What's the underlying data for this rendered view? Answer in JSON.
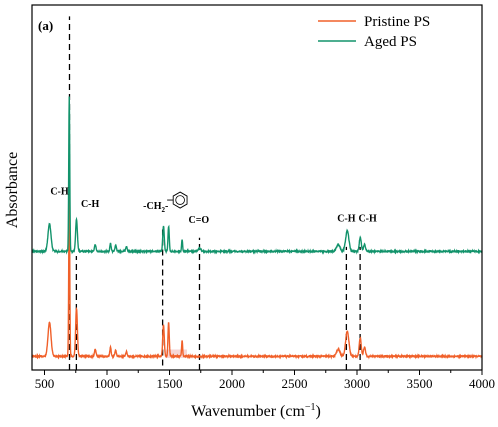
{
  "chart_data": {
    "type": "line",
    "panel_label": "(a)",
    "xlabel": "Wavenumber (cm",
    "xlabel_sup": "−1",
    "xlabel_close": ")",
    "ylabel": "Absorbance",
    "xlim": [
      400,
      4000
    ],
    "x_ticks": [
      500,
      1000,
      1500,
      2000,
      2500,
      3000,
      3500,
      4000
    ],
    "y_tick_labels_shown": false,
    "legend_position": "top-right",
    "colors": {
      "pristine": "#f0602a",
      "aged": "#12936b",
      "highlight": "#f6d6d6",
      "axis": "#000000"
    },
    "series": [
      {
        "name": "Pristine PS",
        "color": "#f0602a",
        "baseline": 0.06,
        "noise": 0.006,
        "peaks": [
          {
            "x": 540,
            "height": 0.15,
            "width": 12
          },
          {
            "x": 698,
            "height": 0.72,
            "width": 4
          },
          {
            "x": 756,
            "height": 0.21,
            "width": 7
          },
          {
            "x": 906,
            "height": 0.03,
            "width": 6
          },
          {
            "x": 1028,
            "height": 0.04,
            "width": 5
          },
          {
            "x": 1069,
            "height": 0.025,
            "width": 6
          },
          {
            "x": 1155,
            "height": 0.02,
            "width": 6
          },
          {
            "x": 1452,
            "height": 0.14,
            "width": 6
          },
          {
            "x": 1493,
            "height": 0.15,
            "width": 5
          },
          {
            "x": 1601,
            "height": 0.07,
            "width": 4
          },
          {
            "x": 2850,
            "height": 0.03,
            "width": 14
          },
          {
            "x": 2922,
            "height": 0.11,
            "width": 13
          },
          {
            "x": 3026,
            "height": 0.08,
            "width": 8
          },
          {
            "x": 3060,
            "height": 0.04,
            "width": 8
          }
        ]
      },
      {
        "name": "Aged PS",
        "color": "#12936b",
        "baseline": 0.52,
        "noise": 0.006,
        "peaks": [
          {
            "x": 540,
            "height": 0.12,
            "width": 12
          },
          {
            "x": 698,
            "height": 0.68,
            "width": 4
          },
          {
            "x": 756,
            "height": 0.14,
            "width": 7
          },
          {
            "x": 906,
            "height": 0.03,
            "width": 6
          },
          {
            "x": 1028,
            "height": 0.035,
            "width": 5
          },
          {
            "x": 1069,
            "height": 0.025,
            "width": 6
          },
          {
            "x": 1155,
            "height": 0.02,
            "width": 6
          },
          {
            "x": 1452,
            "height": 0.11,
            "width": 6
          },
          {
            "x": 1493,
            "height": 0.11,
            "width": 5
          },
          {
            "x": 1601,
            "height": 0.05,
            "width": 4
          },
          {
            "x": 1740,
            "height": 0.012,
            "width": 12
          },
          {
            "x": 2850,
            "height": 0.03,
            "width": 14
          },
          {
            "x": 2922,
            "height": 0.09,
            "width": 13
          },
          {
            "x": 3026,
            "height": 0.06,
            "width": 8
          },
          {
            "x": 3060,
            "height": 0.03,
            "width": 8
          }
        ]
      }
    ],
    "highlight_band": {
      "x_from": 1470,
      "x_to": 1640
    },
    "reference_lines": [
      {
        "x": 700,
        "y_from": 0.0,
        "y_to": 1.55
      },
      {
        "x": 755,
        "y_from": 0.0,
        "y_to": 0.5
      },
      {
        "x": 1445,
        "y_from": 0.02,
        "y_to": 0.63
      },
      {
        "x": 1740,
        "y_from": 0.0,
        "y_to": 0.58
      },
      {
        "x": 2915,
        "y_from": 0.0,
        "y_to": 0.54
      },
      {
        "x": 3025,
        "y_from": 0.0,
        "y_to": 0.54
      }
    ],
    "annotations": [
      {
        "id": "ch-698",
        "text": "C-H",
        "x": 620,
        "y": 0.77
      },
      {
        "id": "ch-756",
        "text": "C-H",
        "x": 865,
        "y": 0.715
      },
      {
        "id": "ch2",
        "text": "-CH",
        "sub": "2",
        "tail": "-",
        "x": 1390,
        "y": 0.705
      },
      {
        "id": "co",
        "text": "C=O",
        "x": 1735,
        "y": 0.645
      },
      {
        "id": "ch-2922",
        "text": "C-H",
        "x": 2915,
        "y": 0.65
      },
      {
        "id": "ch-3026",
        "text": "C-H",
        "x": 3085,
        "y": 0.65
      }
    ]
  }
}
